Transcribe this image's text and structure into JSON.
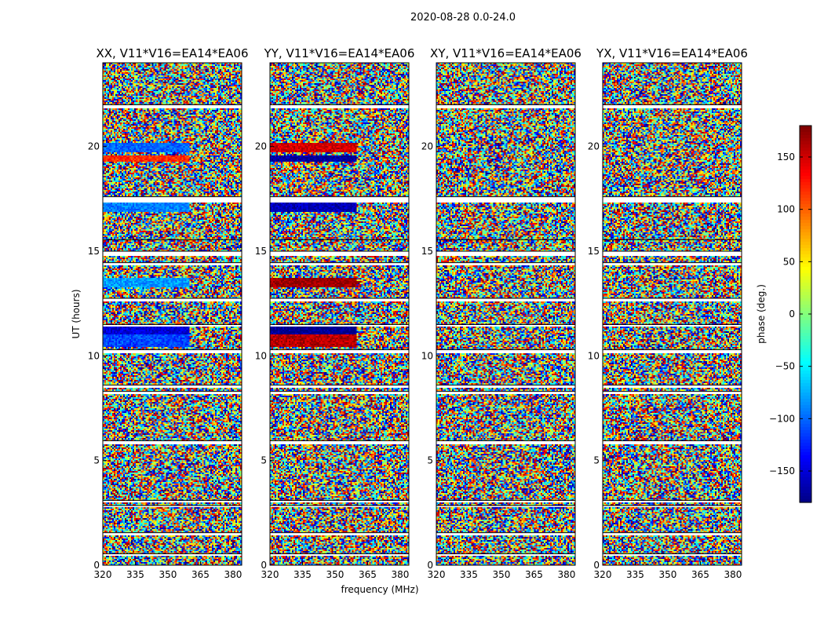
{
  "chart_data": {
    "type": "heatmap",
    "title": "2020-08-28 0.0-24.0",
    "xlabel": "frequency (MHz)",
    "ylabel": "UT (hours)",
    "xlim": [
      320,
      384
    ],
    "ylim": [
      0,
      24
    ],
    "xticks": [
      "320",
      "335",
      "350",
      "365",
      "380"
    ],
    "yticks": [
      "0",
      "5",
      "10",
      "15",
      "20"
    ],
    "panels": [
      {
        "title": "XX, V11*V16=EA14*EA06",
        "coherent_rows": [
          [
            19.7,
            20.2,
            -100
          ],
          [
            19.3,
            19.6,
            120
          ],
          [
            16.9,
            17.3,
            -90
          ],
          [
            13.3,
            13.7,
            -80
          ],
          [
            10.4,
            11.2,
            -110
          ],
          [
            11.0,
            11.4,
            -150
          ]
        ]
      },
      {
        "title": "YY, V11*V16=EA14*EA06",
        "coherent_rows": [
          [
            19.7,
            20.2,
            150
          ],
          [
            19.3,
            19.6,
            -170
          ],
          [
            16.9,
            17.3,
            -160
          ],
          [
            13.3,
            13.7,
            170
          ],
          [
            10.4,
            11.2,
            160
          ],
          [
            11.0,
            11.4,
            -175
          ]
        ]
      },
      {
        "title": "XY, V11*V16=EA14*EA06",
        "coherent_rows": []
      },
      {
        "title": "YX, V11*V16=EA14*EA06",
        "coherent_rows": []
      }
    ],
    "flagged_hours": [
      [
        21.85,
        22.0
      ],
      [
        17.3,
        17.6
      ],
      [
        15.5,
        15.55
      ],
      [
        14.8,
        15.0
      ],
      [
        14.3,
        14.45
      ],
      [
        12.6,
        12.75
      ],
      [
        10.1,
        10.3
      ],
      [
        8.5,
        8.6
      ],
      [
        8.2,
        8.3
      ],
      [
        5.8,
        5.95
      ],
      [
        2.75,
        2.85
      ],
      [
        1.45,
        1.55
      ],
      [
        0.45,
        0.55
      ],
      [
        11.4,
        11.5
      ],
      [
        3.0,
        3.1
      ]
    ],
    "colorbar": {
      "label": "phase (deg.)",
      "range": [
        -180,
        180
      ],
      "ticks": [
        "150",
        "100",
        "50",
        "0",
        "−50",
        "−100",
        "−150"
      ],
      "tick_values": [
        150,
        100,
        50,
        0,
        -50,
        -100,
        -150
      ],
      "colormap": "jet"
    }
  }
}
